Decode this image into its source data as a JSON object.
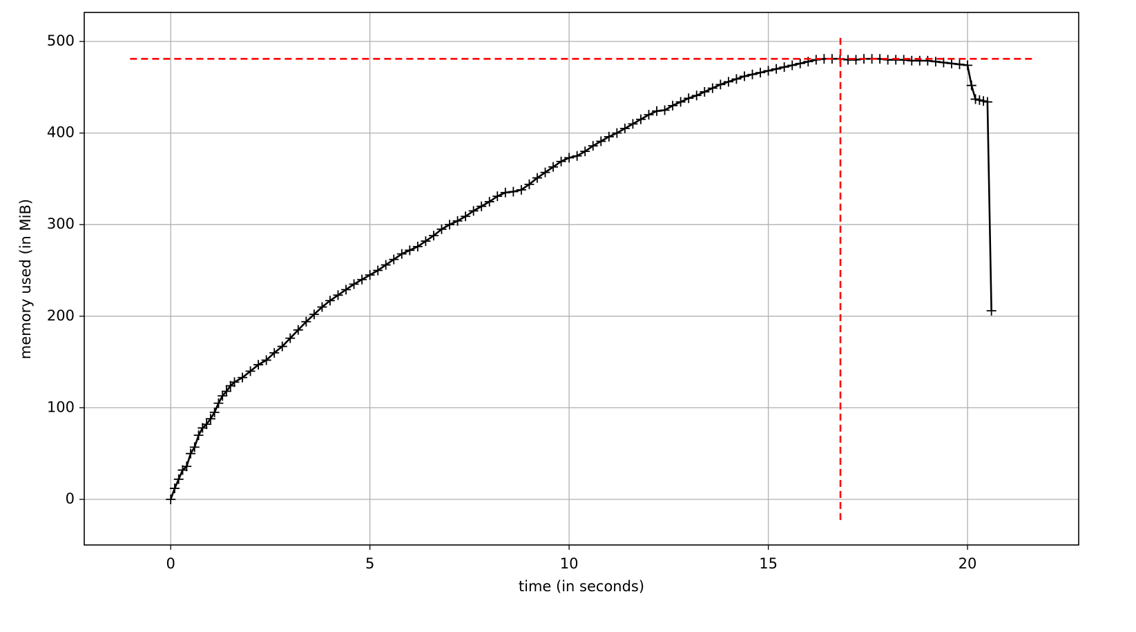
{
  "chart_data": {
    "type": "line",
    "xlabel": "time (in seconds)",
    "ylabel": "memory used (in MiB)",
    "x": [
      0,
      0.1,
      0.2,
      0.3,
      0.4,
      0.5,
      0.6,
      0.7,
      0.8,
      0.9,
      1.0,
      1.1,
      1.2,
      1.3,
      1.4,
      1.5,
      1.6,
      1.8,
      2.0,
      2.2,
      2.4,
      2.6,
      2.8,
      3.0,
      3.2,
      3.4,
      3.6,
      3.8,
      4.0,
      4.2,
      4.4,
      4.6,
      4.8,
      5.0,
      5.2,
      5.4,
      5.6,
      5.8,
      6.0,
      6.2,
      6.4,
      6.6,
      6.8,
      7.0,
      7.2,
      7.4,
      7.6,
      7.8,
      8.0,
      8.2,
      8.4,
      8.6,
      8.8,
      9.0,
      9.2,
      9.4,
      9.6,
      9.8,
      10.0,
      10.2,
      10.4,
      10.6,
      10.8,
      11.0,
      11.2,
      11.4,
      11.6,
      11.8,
      12.0,
      12.2,
      12.4,
      12.6,
      12.8,
      13.0,
      13.2,
      13.4,
      13.6,
      13.8,
      14.0,
      14.2,
      14.4,
      14.6,
      14.8,
      15.0,
      15.2,
      15.4,
      15.6,
      15.8,
      16.0,
      16.2,
      16.4,
      16.6,
      16.8,
      17.0,
      17.2,
      17.4,
      17.6,
      17.8,
      18.0,
      18.2,
      18.4,
      18.6,
      18.8,
      19.0,
      19.2,
      19.4,
      19.6,
      19.8,
      20.0,
      20.1,
      20.2,
      20.3,
      20.4,
      20.5,
      20.6
    ],
    "values": [
      0,
      12,
      22,
      32,
      36,
      50,
      57,
      70,
      78,
      82,
      88,
      95,
      105,
      113,
      118,
      124,
      128,
      133,
      140,
      147,
      152,
      160,
      167,
      176,
      185,
      194,
      202,
      210,
      217,
      223,
      229,
      235,
      240,
      245,
      250,
      256,
      262,
      268,
      272,
      276,
      282,
      288,
      295,
      300,
      304,
      309,
      315,
      320,
      325,
      331,
      335,
      336,
      338,
      344,
      351,
      357,
      363,
      369,
      373,
      375,
      380,
      386,
      391,
      396,
      400,
      405,
      410,
      415,
      420,
      424,
      425,
      430,
      434,
      438,
      441,
      445,
      449,
      453,
      456,
      459,
      462,
      464,
      466,
      468,
      470,
      472,
      474,
      476,
      478,
      480,
      481,
      481,
      481,
      480,
      480,
      481,
      481,
      481,
      480,
      480,
      480,
      479,
      479,
      479,
      478,
      477,
      476,
      475,
      474,
      452,
      437,
      436,
      435,
      434,
      206
    ],
    "color": "#000000",
    "marker": "+",
    "hlines": [
      {
        "y": 481,
        "xmin": -1.02,
        "xmax": 21.66,
        "color": "#ff0000"
      }
    ],
    "vlines": [
      {
        "x": 16.81,
        "ymin": -22.6,
        "ymax": 505,
        "color": "#ff0000"
      }
    ],
    "xlim": [
      -2.17,
      22.79
    ],
    "ylim": [
      -49.8,
      531.7
    ],
    "xticks": [
      0,
      5,
      10,
      15,
      20
    ],
    "yticks": [
      0,
      100,
      200,
      300,
      400,
      500
    ],
    "grid": true
  }
}
